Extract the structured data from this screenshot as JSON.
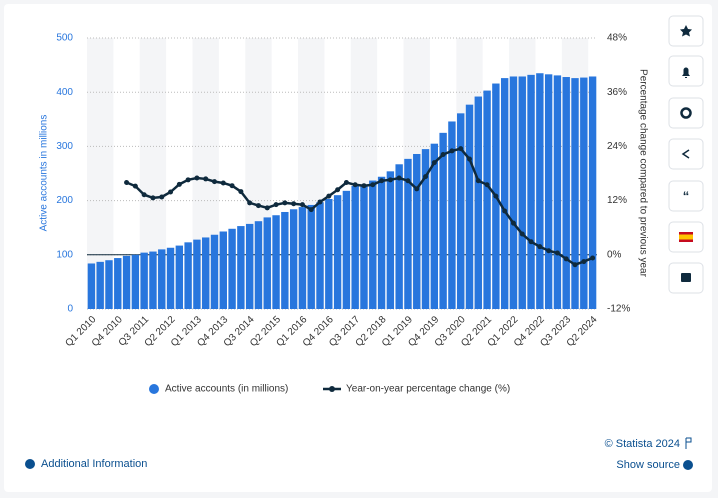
{
  "chart_data": {
    "type": "bar-line",
    "y_label": "Active accounts in millions",
    "y2_label": "Percentage change compared to previous year",
    "categories": [
      "Q1 2010",
      null,
      null,
      "Q4 2010",
      null,
      null,
      "Q3 2011",
      null,
      null,
      "Q2 2012",
      null,
      null,
      "Q1 2013",
      null,
      null,
      "Q4 2013",
      null,
      null,
      "Q3 2014",
      null,
      null,
      "Q2 2015",
      null,
      null,
      "Q1 2016",
      null,
      null,
      "Q4 2016",
      null,
      null,
      "Q3 2017",
      null,
      null,
      "Q2 2018",
      null,
      null,
      "Q1 2019",
      null,
      null,
      "Q4 2019",
      null,
      null,
      "Q3 2020",
      null,
      null,
      "Q2 2021",
      null,
      null,
      "Q1 2022",
      null,
      null,
      "Q4 2022",
      null,
      null,
      "Q3 2023",
      null,
      null,
      "Q2 2024"
    ],
    "series": [
      {
        "name": "Active accounts (in millions)",
        "type": "bar",
        "color": "#2876dd",
        "values": [
          84,
          87,
          90,
          94,
          98,
          100,
          104,
          106,
          110,
          113,
          117,
          123,
          128,
          132,
          137,
          143,
          148,
          153,
          157,
          162,
          169,
          173,
          179,
          184,
          188,
          192,
          197,
          203,
          210,
          218,
          227,
          229,
          237,
          244,
          254,
          267,
          277,
          286,
          295,
          305,
          325,
          346,
          361,
          377,
          392,
          403,
          416,
          426,
          429,
          429,
          432,
          435,
          433,
          431,
          428,
          426,
          427,
          429
        ]
      },
      {
        "name": "Year-on-year percentage change (%)",
        "type": "line",
        "axis": "y2",
        "color": "#0f2a3d",
        "values": [
          null,
          null,
          null,
          null,
          16,
          15.2,
          13.3,
          12.6,
          12.8,
          13.9,
          15.6,
          16.6,
          17,
          16.8,
          16.2,
          15.9,
          15.3,
          14,
          11.5,
          10.9,
          10.4,
          11.1,
          11.5,
          11.3,
          11.1,
          10,
          11.7,
          13,
          14.4,
          16,
          15.5,
          15.3,
          15.5,
          16.4,
          16.6,
          17,
          16.4,
          14.6,
          17.3,
          20.4,
          22.2,
          23,
          23.5,
          21.2,
          16.4,
          15.5,
          13,
          9.7,
          7,
          4.6,
          2.9,
          1.8,
          0.9,
          0.4,
          -0.9,
          -2.2,
          -1.5,
          -0.7
        ]
      }
    ],
    "ylim": [
      0,
      500
    ],
    "yticks": [
      0,
      100,
      200,
      300,
      400,
      500
    ],
    "y2lim": [
      -12,
      48
    ],
    "y2ticks": [
      {
        "value": -12,
        "label": "-12%"
      },
      {
        "value": 0,
        "label": "0%"
      },
      {
        "value": 12,
        "label": "12%"
      },
      {
        "value": 24,
        "label": "24%"
      },
      {
        "value": 36,
        "label": "36%"
      },
      {
        "value": 48,
        "label": "48%"
      }
    ],
    "grid": true,
    "legend": "bottom"
  },
  "footer": {
    "copyright": "© Statista 2024",
    "additional_info": "Additional Information",
    "show_source": "Show source"
  }
}
